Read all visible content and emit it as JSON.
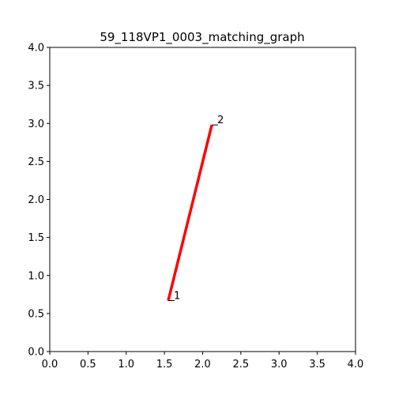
{
  "chart_data": {
    "type": "line",
    "title": "59_118VP1_0003_matching_graph",
    "xlabel": "",
    "ylabel": "",
    "xlim": [
      0,
      4
    ],
    "ylim": [
      0,
      4
    ],
    "x_ticks": [
      "0.0",
      "0.5",
      "1.0",
      "1.5",
      "2.0",
      "2.5",
      "3.0",
      "3.5",
      "4.0"
    ],
    "y_ticks": [
      "0.0",
      "0.5",
      "1.0",
      "1.5",
      "2.0",
      "2.5",
      "3.0",
      "3.5",
      "4.0"
    ],
    "grid": false,
    "nodes": [
      {
        "label": "1",
        "x": 1.55,
        "y": 0.67
      },
      {
        "label": "2",
        "x": 2.12,
        "y": 2.98
      }
    ],
    "edges": [
      {
        "from": "1",
        "to": "2",
        "color": "#ff0000"
      }
    ]
  }
}
